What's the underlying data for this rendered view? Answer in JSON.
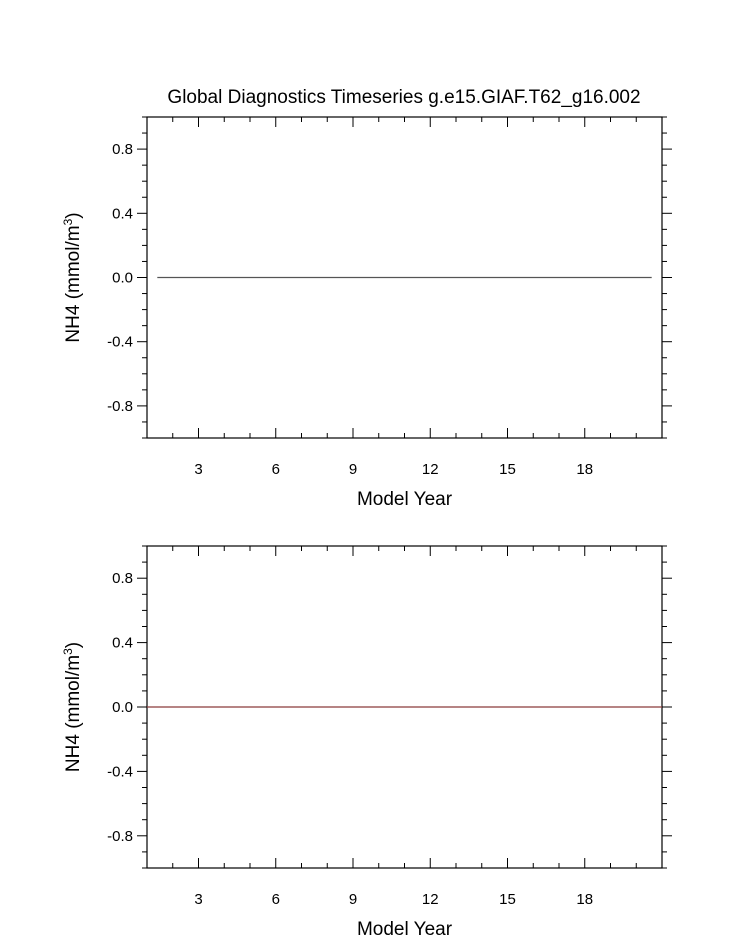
{
  "title": "Global Diagnostics Timeseries g.e15.GIAF.T62_g16.002",
  "chart_data": [
    {
      "type": "line",
      "title": "Global Diagnostics Timeseries g.e15.GIAF.T62_g16.002",
      "xlabel": "Model Year",
      "ylabel": "NH4 (mmol/m",
      "ylabel_superscript": "3",
      "ylabel_suffix": ")",
      "xlim": [
        1,
        21
      ],
      "ylim": [
        -1,
        1
      ],
      "x_ticks": [
        3,
        6,
        9,
        12,
        15,
        18
      ],
      "x_tick_labels": [
        "3",
        "6",
        "9",
        "12",
        "15",
        "18"
      ],
      "y_ticks": [
        0.8,
        0.4,
        0.0,
        -0.4,
        -0.8
      ],
      "y_tick_labels": [
        "0.8",
        "0.4",
        "0.0",
        "-0.4",
        "-0.8"
      ],
      "grid": false,
      "series": [
        {
          "x": [
            1.4,
            20.6
          ],
          "y": [
            0,
            0
          ],
          "color": "#555555"
        }
      ]
    },
    {
      "type": "line",
      "title": "",
      "xlabel": "Model Year",
      "ylabel": "NH4 (mmol/m",
      "ylabel_superscript": "3",
      "ylabel_suffix": ")",
      "xlim": [
        1,
        21
      ],
      "ylim": [
        -1,
        1
      ],
      "x_ticks": [
        3,
        6,
        9,
        12,
        15,
        18
      ],
      "x_tick_labels": [
        "3",
        "6",
        "9",
        "12",
        "15",
        "18"
      ],
      "y_ticks": [
        0.8,
        0.4,
        0.0,
        -0.4,
        -0.8
      ],
      "y_tick_labels": [
        "0.8",
        "0.4",
        "0.0",
        "-0.4",
        "-0.8"
      ],
      "grid": false,
      "series": [
        {
          "x": [
            1,
            21
          ],
          "y": [
            0,
            0
          ],
          "color": "#8b3a3a"
        }
      ]
    }
  ]
}
